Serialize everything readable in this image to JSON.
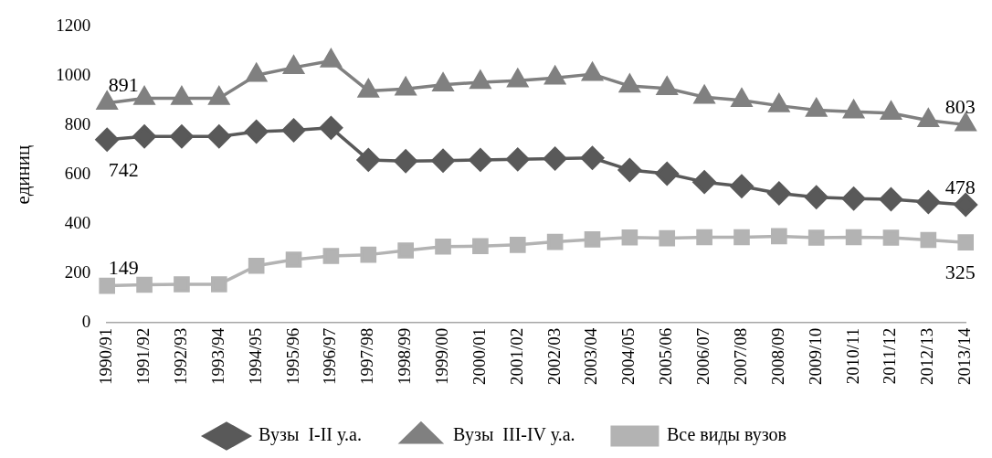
{
  "chart_data": {
    "type": "line",
    "ylabel": "единиц",
    "categories": [
      "1990/91",
      "1991/92",
      "1992/93",
      "1993/94",
      "1994/95",
      "1995/96",
      "1996/97",
      "1997/98",
      "1998/99",
      "1999/00",
      "2000/01",
      "2001/02",
      "2002/03",
      "2003/04",
      "2004/05",
      "2005/06",
      "2006/07",
      "2007/08",
      "2008/09",
      "2009/10",
      "2010/11",
      "2011/12",
      "2012/13",
      "2013/14"
    ],
    "series": [
      {
        "name": "Вузы  I-II у.а.",
        "color": "#595959",
        "marker": "diamond",
        "values": [
          742,
          755,
          755,
          755,
          775,
          780,
          790,
          660,
          655,
          657,
          660,
          662,
          665,
          668,
          619,
          604,
          570,
          553,
          524,
          508,
          503,
          500,
          489,
          478
        ],
        "value_labels": [
          "742",
          null,
          null,
          null,
          null,
          null,
          null,
          null,
          null,
          null,
          null,
          null,
          null,
          null,
          null,
          null,
          null,
          null,
          null,
          null,
          null,
          null,
          null,
          "478"
        ]
      },
      {
        "name": "Вузы  III-IV у.а.",
        "color": "#808080",
        "marker": "triangle",
        "values": [
          891,
          910,
          910,
          910,
          1004,
          1035,
          1062,
          940,
          948,
          965,
          975,
          982,
          993,
          1008,
          960,
          950,
          915,
          902,
          880,
          862,
          855,
          850,
          820,
          803
        ],
        "value_labels": [
          "891",
          null,
          null,
          null,
          null,
          null,
          null,
          null,
          null,
          null,
          null,
          null,
          null,
          null,
          null,
          null,
          null,
          null,
          null,
          null,
          null,
          null,
          null,
          "803"
        ]
      },
      {
        "name": "Все виды вузов",
        "color": "#b3b3b3",
        "marker": "square",
        "values": [
          149,
          153,
          155,
          155,
          230,
          255,
          270,
          275,
          292,
          308,
          310,
          315,
          327,
          337,
          345,
          342,
          346,
          346,
          350,
          344,
          346,
          344,
          335,
          325
        ],
        "value_labels": [
          "149",
          null,
          null,
          null,
          null,
          null,
          null,
          null,
          null,
          null,
          null,
          null,
          null,
          null,
          null,
          null,
          null,
          null,
          null,
          null,
          null,
          null,
          null,
          "325"
        ]
      }
    ],
    "ylim": [
      0,
      1200
    ],
    "yticks": [
      0,
      200,
      400,
      600,
      800,
      1000,
      1200
    ],
    "grid": false,
    "legend": "bottom",
    "line_style": "solid"
  }
}
